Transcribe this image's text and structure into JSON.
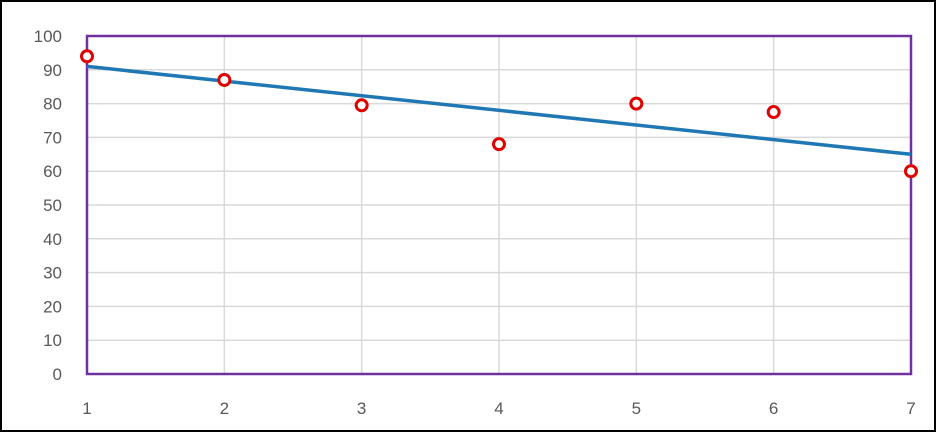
{
  "chart_data": {
    "type": "scatter",
    "title": "",
    "xlabel": "",
    "ylabel": "",
    "xlim": [
      1,
      7
    ],
    "ylim": [
      0,
      100
    ],
    "x_ticks": [
      "1",
      "2",
      "3",
      "4",
      "5",
      "6",
      "7"
    ],
    "y_ticks": [
      "0",
      "10",
      "20",
      "30",
      "40",
      "50",
      "60",
      "70",
      "80",
      "90",
      "100"
    ],
    "grid": true,
    "legend": "none",
    "series": [
      {
        "type": "scatter",
        "x": [
          1,
          2,
          3,
          4,
          5,
          6,
          7
        ],
        "y": [
          94,
          87,
          79.5,
          68,
          80,
          77.5,
          60
        ],
        "color": "#e00000"
      }
    ],
    "trendline": {
      "type": "linear",
      "x": [
        1,
        7
      ],
      "y": [
        91,
        65
      ],
      "color": "#1f77b4"
    },
    "plot_border_color": "#7030a0",
    "grid_color": "#d9d9d9"
  }
}
